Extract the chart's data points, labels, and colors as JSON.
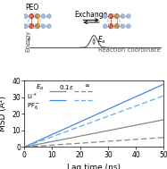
{
  "xlabel": "Lag time (ns)",
  "ylabel": "MSD (Å²)",
  "xlim": [
    0,
    50
  ],
  "ylim": [
    0,
    40
  ],
  "xticks": [
    0,
    10,
    20,
    30,
    40,
    50
  ],
  "yticks": [
    0,
    10,
    20,
    30,
    40
  ],
  "bg_color": "#ffffff",
  "li_solid_color": "#888888",
  "li_dashed_color": "#888888",
  "pf_solid_color": "#4488dd",
  "pf_dashed_color": "#66aaee",
  "li_solid_slope": 0.33,
  "li_dashed_slope": 0.115,
  "pf_solid_slope": 0.76,
  "pf_dashed_slope": 0.62,
  "fontsize": 6.5,
  "node_color": "#aabbd8",
  "cross_color": "#dd5544",
  "cross2_color": "#cc8833"
}
